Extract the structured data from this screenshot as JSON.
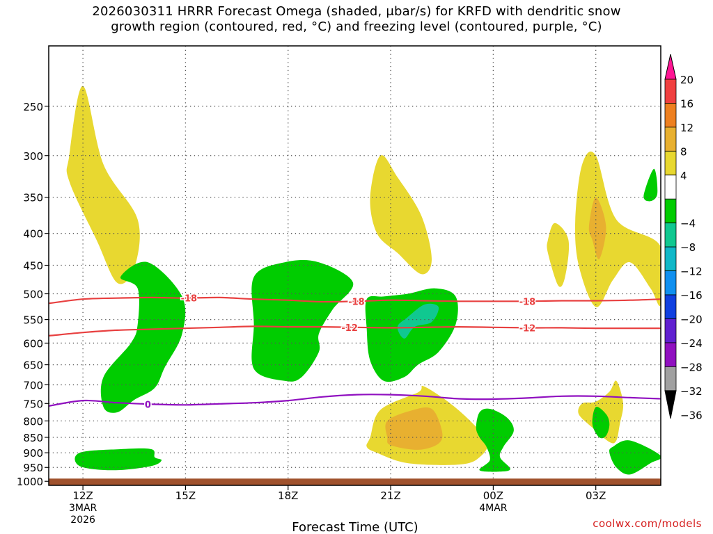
{
  "title": {
    "line1": "2026030311 HRRR Forecast Omega (shaded, μbar/s) for KRFD with dendritic snow",
    "line2": "growth region (contoured, red, °C) and freezing level (contoured, purple, °C)"
  },
  "credit": "coolwx.com/models",
  "chart_data": {
    "type": "heatmap",
    "xlabel": "Forecast Time (UTC)",
    "ylabel": "",
    "x_ticks": [
      {
        "label": "12Z",
        "sub": [
          "3MAR",
          "2026"
        ],
        "hour": 0
      },
      {
        "label": "15Z",
        "sub": [],
        "hour": 3
      },
      {
        "label": "18Z",
        "sub": [],
        "hour": 6
      },
      {
        "label": "21Z",
        "sub": [],
        "hour": 9
      },
      {
        "label": "00Z",
        "sub": [
          "4MAR"
        ],
        "hour": 12
      },
      {
        "label": "03Z",
        "sub": [],
        "hour": 15
      }
    ],
    "xlim_hours": [
      -1,
      16.9
    ],
    "y_ticks": [
      250,
      300,
      350,
      400,
      450,
      500,
      550,
      600,
      650,
      700,
      750,
      800,
      850,
      900,
      950,
      1000
    ],
    "ylim_hpa": [
      200,
      1015
    ],
    "y_scale": "log",
    "ground_top_hpa": 990,
    "colorbar": {
      "labels": [
        "20",
        "16",
        "12",
        "8",
        "4",
        "−4",
        "−8",
        "−12",
        "−16",
        "−20",
        "−24",
        "−28",
        "−32",
        "−36"
      ],
      "colors": [
        "#ff1493",
        "#f04040",
        "#ee8020",
        "#e8b030",
        "#e8d830",
        "#ffffff",
        "#00cc00",
        "#10c890",
        "#10b8c8",
        "#1090f0",
        "#1040e0",
        "#6020d0",
        "#9010c0",
        "#a0a0a0",
        "#000000"
      ]
    },
    "contours": [
      {
        "label": "-18",
        "color": "#e84040",
        "points": [
          [
            -1,
            518
          ],
          [
            0,
            510
          ],
          [
            1,
            508
          ],
          [
            2,
            507
          ],
          [
            3,
            508
          ],
          [
            4,
            507
          ],
          [
            5,
            510
          ],
          [
            6,
            512
          ],
          [
            7,
            515
          ],
          [
            8,
            514
          ],
          [
            9,
            512
          ],
          [
            10,
            513
          ],
          [
            11,
            514
          ],
          [
            12,
            514
          ],
          [
            13,
            514
          ],
          [
            14,
            513
          ],
          [
            15,
            513
          ],
          [
            16,
            512
          ],
          [
            16.9,
            510
          ]
        ],
        "label_at": [
          [
            3.1,
            508
          ],
          [
            8,
            514
          ],
          [
            13,
            514
          ]
        ]
      },
      {
        "label": "-12",
        "color": "#e84040",
        "points": [
          [
            -1,
            584
          ],
          [
            0,
            577
          ],
          [
            1,
            572
          ],
          [
            2,
            570
          ],
          [
            3,
            568
          ],
          [
            4,
            566
          ],
          [
            5,
            564
          ],
          [
            6,
            565
          ],
          [
            7,
            565
          ],
          [
            8,
            566
          ],
          [
            9,
            567
          ],
          [
            10,
            566
          ],
          [
            11,
            565
          ],
          [
            12,
            566
          ],
          [
            13,
            567
          ],
          [
            14,
            567
          ],
          [
            15,
            568
          ],
          [
            16,
            568
          ],
          [
            16.9,
            568
          ]
        ],
        "label_at": [
          [
            7.8,
            566
          ],
          [
            13,
            567
          ]
        ]
      },
      {
        "label": "0",
        "color": "#9010c0",
        "points": [
          [
            -1,
            757
          ],
          [
            0,
            742
          ],
          [
            1,
            748
          ],
          [
            2,
            752
          ],
          [
            3,
            754
          ],
          [
            4,
            751
          ],
          [
            5,
            748
          ],
          [
            6,
            742
          ],
          [
            7,
            732
          ],
          [
            8,
            726
          ],
          [
            9,
            726
          ],
          [
            10,
            730
          ],
          [
            11,
            737
          ],
          [
            12,
            738
          ],
          [
            13,
            735
          ],
          [
            14,
            730
          ],
          [
            15,
            730
          ],
          [
            16,
            734
          ],
          [
            16.9,
            737
          ]
        ],
        "label_at": [
          [
            1.9,
            752
          ]
        ]
      }
    ],
    "omega_regions": [
      {
        "value": 4,
        "color": "#e8d830",
        "points": [
          [
            -0.4,
            300
          ],
          [
            0,
            232
          ],
          [
            0.6,
            310
          ],
          [
            1.6,
            380
          ],
          [
            1.5,
            455
          ],
          [
            1,
            480
          ],
          [
            0.4,
            410
          ],
          [
            -0.4,
            330
          ]
        ]
      },
      {
        "value": 4,
        "color": "#e8d830",
        "points": [
          [
            8.4,
            350
          ],
          [
            8.7,
            300
          ],
          [
            9.2,
            325
          ],
          [
            9.9,
            375
          ],
          [
            10.2,
            440
          ],
          [
            9.9,
            465
          ],
          [
            9.2,
            430
          ],
          [
            8.6,
            400
          ]
        ]
      },
      {
        "value": 4,
        "color": "#e8d830",
        "points": [
          [
            13.6,
            410
          ],
          [
            13.8,
            385
          ],
          [
            14.2,
            410
          ],
          [
            14.1,
            470
          ],
          [
            13.9,
            485
          ],
          [
            13.6,
            430
          ]
        ]
      },
      {
        "value": 4,
        "color": "#e8d830",
        "points": [
          [
            14.6,
            310
          ],
          [
            15.0,
            300
          ],
          [
            15.6,
            380
          ],
          [
            16.9,
            420
          ],
          [
            16.9,
            520
          ],
          [
            16.6,
            490
          ],
          [
            16,
            445
          ],
          [
            15.5,
            475
          ],
          [
            15,
            525
          ],
          [
            14.5,
            450
          ],
          [
            14.4,
            380
          ]
        ]
      },
      {
        "value": 8,
        "color": "#e8b030",
        "points": [
          [
            15.0,
            350
          ],
          [
            15.3,
            390
          ],
          [
            15.1,
            440
          ],
          [
            14.9,
            410
          ],
          [
            14.8,
            390
          ]
        ]
      },
      {
        "value": -4,
        "color": "#00cc00",
        "points": [
          [
            16.4,
            348
          ],
          [
            16.7,
            315
          ],
          [
            16.8,
            345
          ],
          [
            16.6,
            355
          ]
        ]
      },
      {
        "value": -4,
        "color": "#00cc00",
        "points": [
          [
            1.1,
            470
          ],
          [
            1.9,
            445
          ],
          [
            2.9,
            505
          ],
          [
            2.9,
            580
          ],
          [
            2.4,
            655
          ],
          [
            2.1,
            708
          ],
          [
            1.5,
            740
          ],
          [
            1,
            775
          ],
          [
            0.6,
            760
          ],
          [
            0.6,
            680
          ],
          [
            1.4,
            600
          ],
          [
            1.6,
            560
          ],
          [
            1.6,
            490
          ]
        ]
      },
      {
        "value": -4,
        "color": "#00cc00",
        "points": [
          [
            5.0,
            470
          ],
          [
            5.9,
            445
          ],
          [
            6.9,
            445
          ],
          [
            7.9,
            480
          ],
          [
            7.3,
            530
          ],
          [
            6.9,
            580
          ],
          [
            6.9,
            620
          ],
          [
            6.4,
            680
          ],
          [
            5.9,
            690
          ],
          [
            5.0,
            660
          ],
          [
            5.0,
            560
          ]
        ]
      },
      {
        "value": -4,
        "color": "#00cc00",
        "points": [
          [
            8.3,
            510
          ],
          [
            8.8,
            505
          ],
          [
            9.5,
            500
          ],
          [
            10.3,
            490
          ],
          [
            10.9,
            505
          ],
          [
            10.9,
            560
          ],
          [
            10.4,
            620
          ],
          [
            9.8,
            650
          ],
          [
            9.4,
            680
          ],
          [
            8.8,
            690
          ],
          [
            8.4,
            640
          ],
          [
            8.3,
            570
          ]
        ]
      },
      {
        "value": -8,
        "color": "#10c890",
        "points": [
          [
            9.2,
            565
          ],
          [
            9.5,
            545
          ],
          [
            10.0,
            520
          ],
          [
            10.4,
            525
          ],
          [
            10.2,
            555
          ],
          [
            9.7,
            565
          ],
          [
            9.4,
            590
          ]
        ]
      },
      {
        "value": -4,
        "color": "#00cc00",
        "points": [
          [
            -0.1,
            900
          ],
          [
            1.1,
            888
          ],
          [
            2.0,
            888
          ],
          [
            2.1,
            915
          ],
          [
            2.3,
            925
          ],
          [
            2.0,
            945
          ],
          [
            0.9,
            960
          ],
          [
            -0.1,
            945
          ]
        ]
      },
      {
        "value": 4,
        "color": "#e8d830",
        "points": [
          [
            8.4,
            850
          ],
          [
            8.7,
            768
          ],
          [
            9.8,
            720
          ],
          [
            10.0,
            705
          ],
          [
            11.0,
            770
          ],
          [
            11.8,
            860
          ],
          [
            11.6,
            915
          ],
          [
            11,
            940
          ],
          [
            9.5,
            935
          ],
          [
            8.6,
            900
          ],
          [
            8.3,
            880
          ]
        ]
      },
      {
        "value": 8,
        "color": "#e8b030",
        "points": [
          [
            8.9,
            800
          ],
          [
            9.6,
            770
          ],
          [
            10.2,
            765
          ],
          [
            10.5,
            830
          ],
          [
            10.4,
            870
          ],
          [
            9.8,
            890
          ],
          [
            9.0,
            875
          ],
          [
            8.9,
            850
          ]
        ]
      },
      {
        "value": -4,
        "color": "#00cc00",
        "points": [
          [
            11.6,
            775
          ],
          [
            11.9,
            765
          ],
          [
            12.4,
            790
          ],
          [
            12.6,
            830
          ],
          [
            12.3,
            880
          ],
          [
            12.2,
            915
          ],
          [
            12.5,
            955
          ],
          [
            12.2,
            965
          ],
          [
            11.6,
            960
          ],
          [
            11.9,
            925
          ],
          [
            11.8,
            880
          ],
          [
            11.6,
            850
          ],
          [
            11.5,
            820
          ]
        ]
      },
      {
        "value": 4,
        "color": "#e8d830",
        "points": [
          [
            14.6,
            750
          ],
          [
            15.0,
            745
          ],
          [
            15.4,
            718
          ],
          [
            15.6,
            690
          ],
          [
            15.8,
            750
          ],
          [
            15.7,
            810
          ],
          [
            15.6,
            860
          ],
          [
            15.4,
            865
          ],
          [
            14.9,
            820
          ],
          [
            14.5,
            780
          ]
        ]
      },
      {
        "value": -4,
        "color": "#00cc00",
        "points": [
          [
            15.0,
            760
          ],
          [
            15.3,
            780
          ],
          [
            15.4,
            810
          ],
          [
            15.3,
            845
          ],
          [
            15.1,
            850
          ],
          [
            14.9,
            810
          ]
        ]
      },
      {
        "value": -4,
        "color": "#00cc00",
        "points": [
          [
            15.5,
            880
          ],
          [
            16.0,
            860
          ],
          [
            16.9,
            910
          ],
          [
            16.6,
            935
          ],
          [
            16.0,
            975
          ],
          [
            15.6,
            950
          ],
          [
            15.4,
            900
          ]
        ]
      }
    ]
  }
}
